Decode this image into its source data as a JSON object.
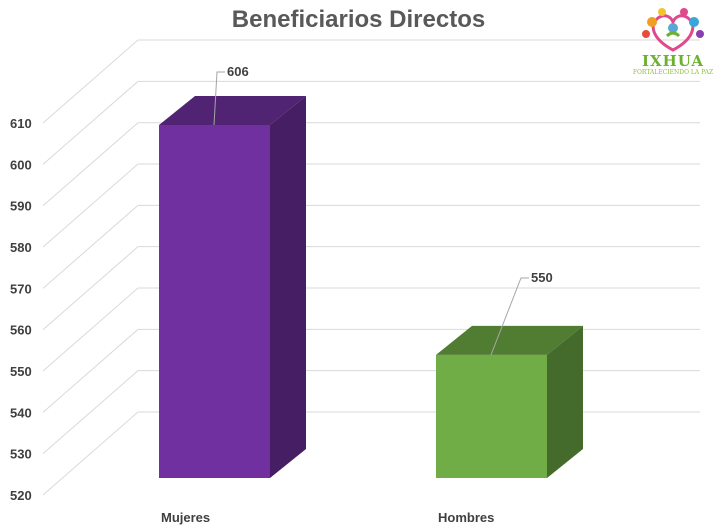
{
  "chart_data": {
    "type": "bar",
    "title": "Beneficiarios Directos",
    "categories": [
      "Mujeres",
      "Hombres"
    ],
    "values": [
      606,
      550
    ],
    "ylim": [
      520,
      610
    ],
    "yticks": [
      520,
      530,
      540,
      550,
      560,
      570,
      580,
      590,
      600,
      610
    ],
    "data_labels": [
      "606",
      "550"
    ],
    "bar_colors": [
      "#7030a0",
      "#70ad47"
    ],
    "grid": true,
    "style": "3d-column"
  },
  "logo": {
    "name": "IXHUA",
    "tagline": "FORTALECIENDO LA PAZ"
  }
}
